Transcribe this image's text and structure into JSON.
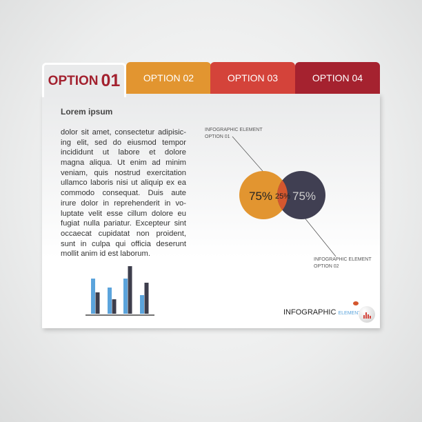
{
  "tabs": [
    {
      "label": "OPTION",
      "number": "01",
      "color": "#a3212f",
      "active": true
    },
    {
      "label": "OPTION 02",
      "color": "#e29530"
    },
    {
      "label": "OPTION 03",
      "color": "#d4433a"
    },
    {
      "label": "OPTION 04",
      "color": "#a5222f"
    }
  ],
  "content": {
    "heading": "Lorem ipsum",
    "lines": [
      "dolor sit amet, consectetur adipisic-",
      "ing elit, sed do eiusmod tempor",
      "incididunt ut labore et dolore",
      "magna aliqua. Ut enim ad minim",
      "veniam, quis nostrud exercitation",
      "ullamco laboris nisi ut aliquip ex ea",
      "commodo consequat. Duis aute",
      "irure dolor in reprehenderit in vo-",
      "luptate velit esse cillum dolore eu",
      "fugiat nulla pariatur. Excepteur sint",
      "occaecat cupidatat non proident,",
      "sunt in culpa qui officia deserunt",
      "mollit anim id est laborum."
    ]
  },
  "venn": {
    "left": {
      "value": "75%",
      "label1": "INFOGRAPHIC ELEMENT",
      "label2": "OPTION 01",
      "color": "#e29530"
    },
    "overlap": {
      "value": "25%",
      "color": "#d4572e"
    },
    "right": {
      "value": "75%",
      "label1": "INFOGRAPHIC ELEMENT",
      "label2": "OPTION 02",
      "color": "#403f52"
    }
  },
  "mini_bars": {
    "colors": [
      "#5ba4dc",
      "#3d3e4c"
    ],
    "groups": [
      [
        51,
        31
      ],
      [
        38,
        21
      ],
      [
        51,
        69
      ],
      [
        27,
        45
      ]
    ]
  },
  "brand": {
    "word1": "INFOGRAPHIC",
    "word2": "ELEMENT",
    "color2": "#5ba4dc"
  }
}
